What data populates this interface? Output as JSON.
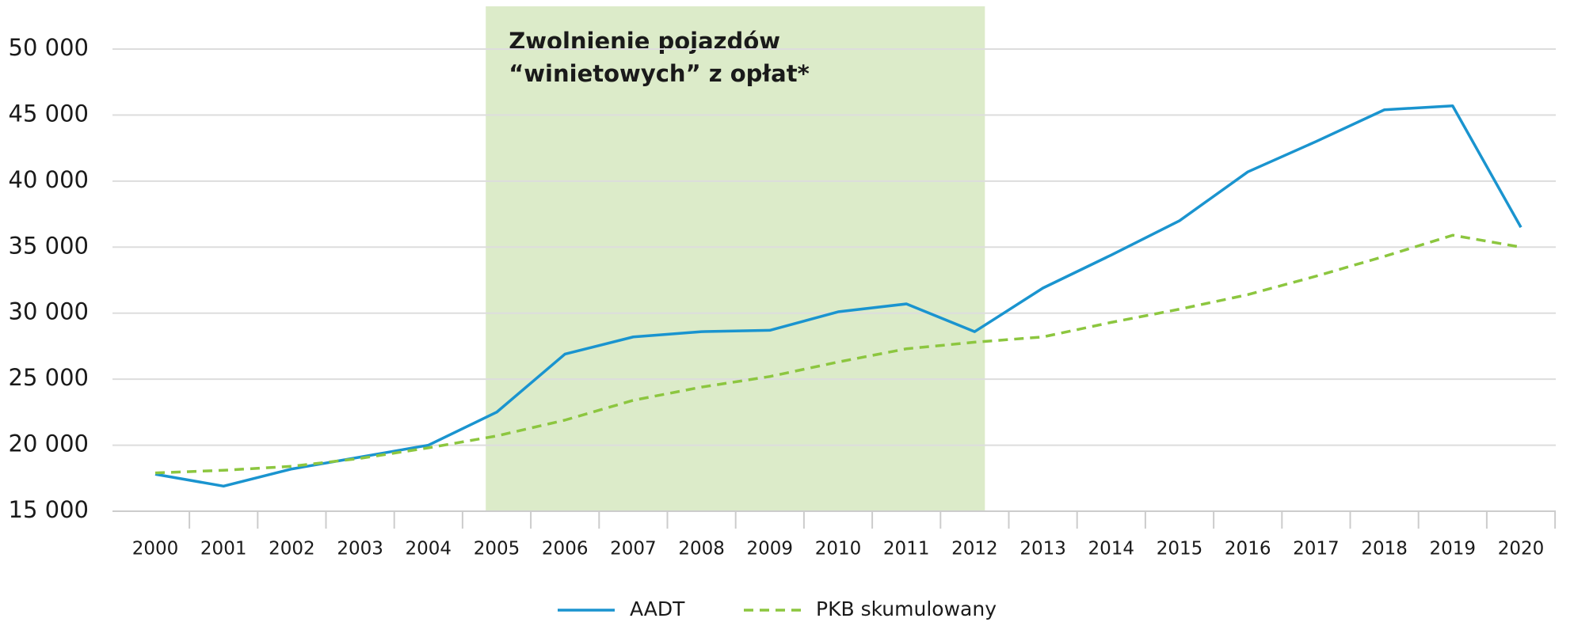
{
  "chart_data": {
    "type": "line",
    "categories": [
      "2000",
      "2001",
      "2002",
      "2003",
      "2004",
      "2005",
      "2006",
      "2007",
      "2008",
      "2009",
      "2010",
      "2011",
      "2012",
      "2013",
      "2014",
      "2015",
      "2016",
      "2017",
      "2018",
      "2019",
      "2020"
    ],
    "series": [
      {
        "name": "AADT",
        "color": "#1a94cf",
        "dash": false,
        "values": [
          17800,
          16900,
          18200,
          19100,
          20000,
          22500,
          26900,
          28200,
          28600,
          28700,
          30100,
          30700,
          28600,
          31900,
          34400,
          37000,
          40700,
          43000,
          45400,
          45700,
          36500
        ]
      },
      {
        "name": "PKB skumulowany",
        "color": "#8cc63f",
        "dash": true,
        "values": [
          17900,
          18100,
          18400,
          19000,
          19800,
          20700,
          21900,
          23400,
          24400,
          25200,
          26300,
          27300,
          27800,
          28200,
          29300,
          30300,
          31400,
          32800,
          34300,
          35900,
          35000
        ]
      }
    ],
    "ylim": [
      15000,
      50000
    ],
    "yticks": [
      {
        "value": 15000,
        "label": "15 000"
      },
      {
        "value": 20000,
        "label": "20 000"
      },
      {
        "value": 25000,
        "label": "25 000"
      },
      {
        "value": 30000,
        "label": "30 000"
      },
      {
        "value": 35000,
        "label": "35 000"
      },
      {
        "value": 40000,
        "label": "40 000"
      },
      {
        "value": 45000,
        "label": "45 000"
      },
      {
        "value": 50000,
        "label": "50 000"
      }
    ],
    "grid": true,
    "highlight": {
      "from": "2005",
      "to": "2012",
      "color": "#dcebc9",
      "label": [
        "Zwolnienie pojazdów",
        "“winietowych” z opłat*"
      ]
    },
    "legend": "bottom"
  }
}
